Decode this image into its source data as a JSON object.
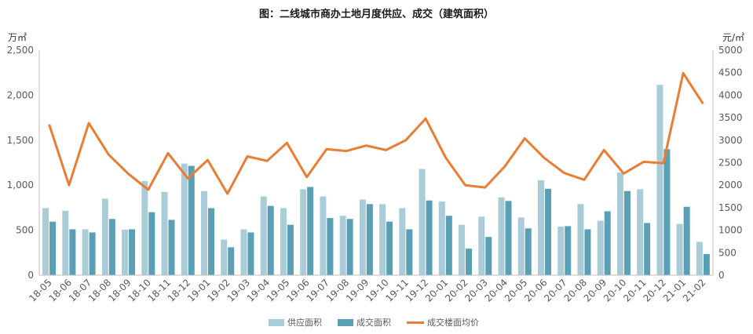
{
  "colors": {
    "supply": "#a9ccd8",
    "deal": "#5b9fb5",
    "price": "#ea7d34",
    "axis": "#bfbfbf",
    "text": "#595959"
  },
  "chart_data": {
    "type": "bar",
    "title": "图：二线城市商办土地月度供应、成交（建筑面积）",
    "y_left_unit": "万㎡",
    "y_right_unit": "元/㎡",
    "ylim_left": [
      0,
      2500
    ],
    "ylim_right": [
      0,
      5000
    ],
    "y_left_ticks": [
      "0",
      "500",
      "1,000",
      "1,500",
      "2,000",
      "2,500"
    ],
    "y_right_ticks": [
      "0",
      "500",
      "1000",
      "1500",
      "2000",
      "2500",
      "3000",
      "3500",
      "4000",
      "4500",
      "5000"
    ],
    "categories": [
      "18-05",
      "18-06",
      "18-07",
      "18-08",
      "18-09",
      "18-10",
      "18-11",
      "18-12",
      "19-01",
      "19-02",
      "19-03",
      "19-04",
      "19-05",
      "19-06",
      "19-07",
      "19-08",
      "19-09",
      "19-10",
      "19-11",
      "19-12",
      "20-01",
      "20-02",
      "20-03",
      "20-04",
      "20-05",
      "20-06",
      "20-07",
      "20-08",
      "20-09",
      "20-10",
      "20-11",
      "20-12",
      "21-01",
      "21-02"
    ],
    "series": [
      {
        "name": "供应面积",
        "type": "bar",
        "axis": "left",
        "values": [
          745,
          715,
          510,
          850,
          505,
          1045,
          925,
          1240,
          935,
          395,
          510,
          875,
          745,
          955,
          875,
          660,
          840,
          790,
          745,
          1180,
          820,
          560,
          650,
          865,
          640,
          1055,
          540,
          790,
          605,
          1140,
          955,
          2115,
          570,
          370
        ]
      },
      {
        "name": "成交面积",
        "type": "bar",
        "axis": "left",
        "values": [
          595,
          510,
          475,
          625,
          510,
          700,
          615,
          1215,
          745,
          310,
          475,
          770,
          560,
          980,
          635,
          625,
          790,
          595,
          510,
          830,
          660,
          295,
          425,
          825,
          520,
          960,
          545,
          510,
          710,
          935,
          580,
          1400,
          760,
          235
        ]
      },
      {
        "name": "成交楼面均价",
        "type": "line",
        "axis": "right",
        "values": [
          3350,
          2000,
          3380,
          2680,
          2250,
          1900,
          2710,
          2150,
          2560,
          1810,
          2640,
          2540,
          2940,
          2180,
          2800,
          2760,
          2880,
          2780,
          3000,
          3480,
          2620,
          2000,
          1950,
          2420,
          3040,
          2600,
          2270,
          2120,
          2780,
          2260,
          2520,
          2490,
          4490,
          3810
        ]
      }
    ],
    "grid": false,
    "legend_position": "bottom"
  }
}
